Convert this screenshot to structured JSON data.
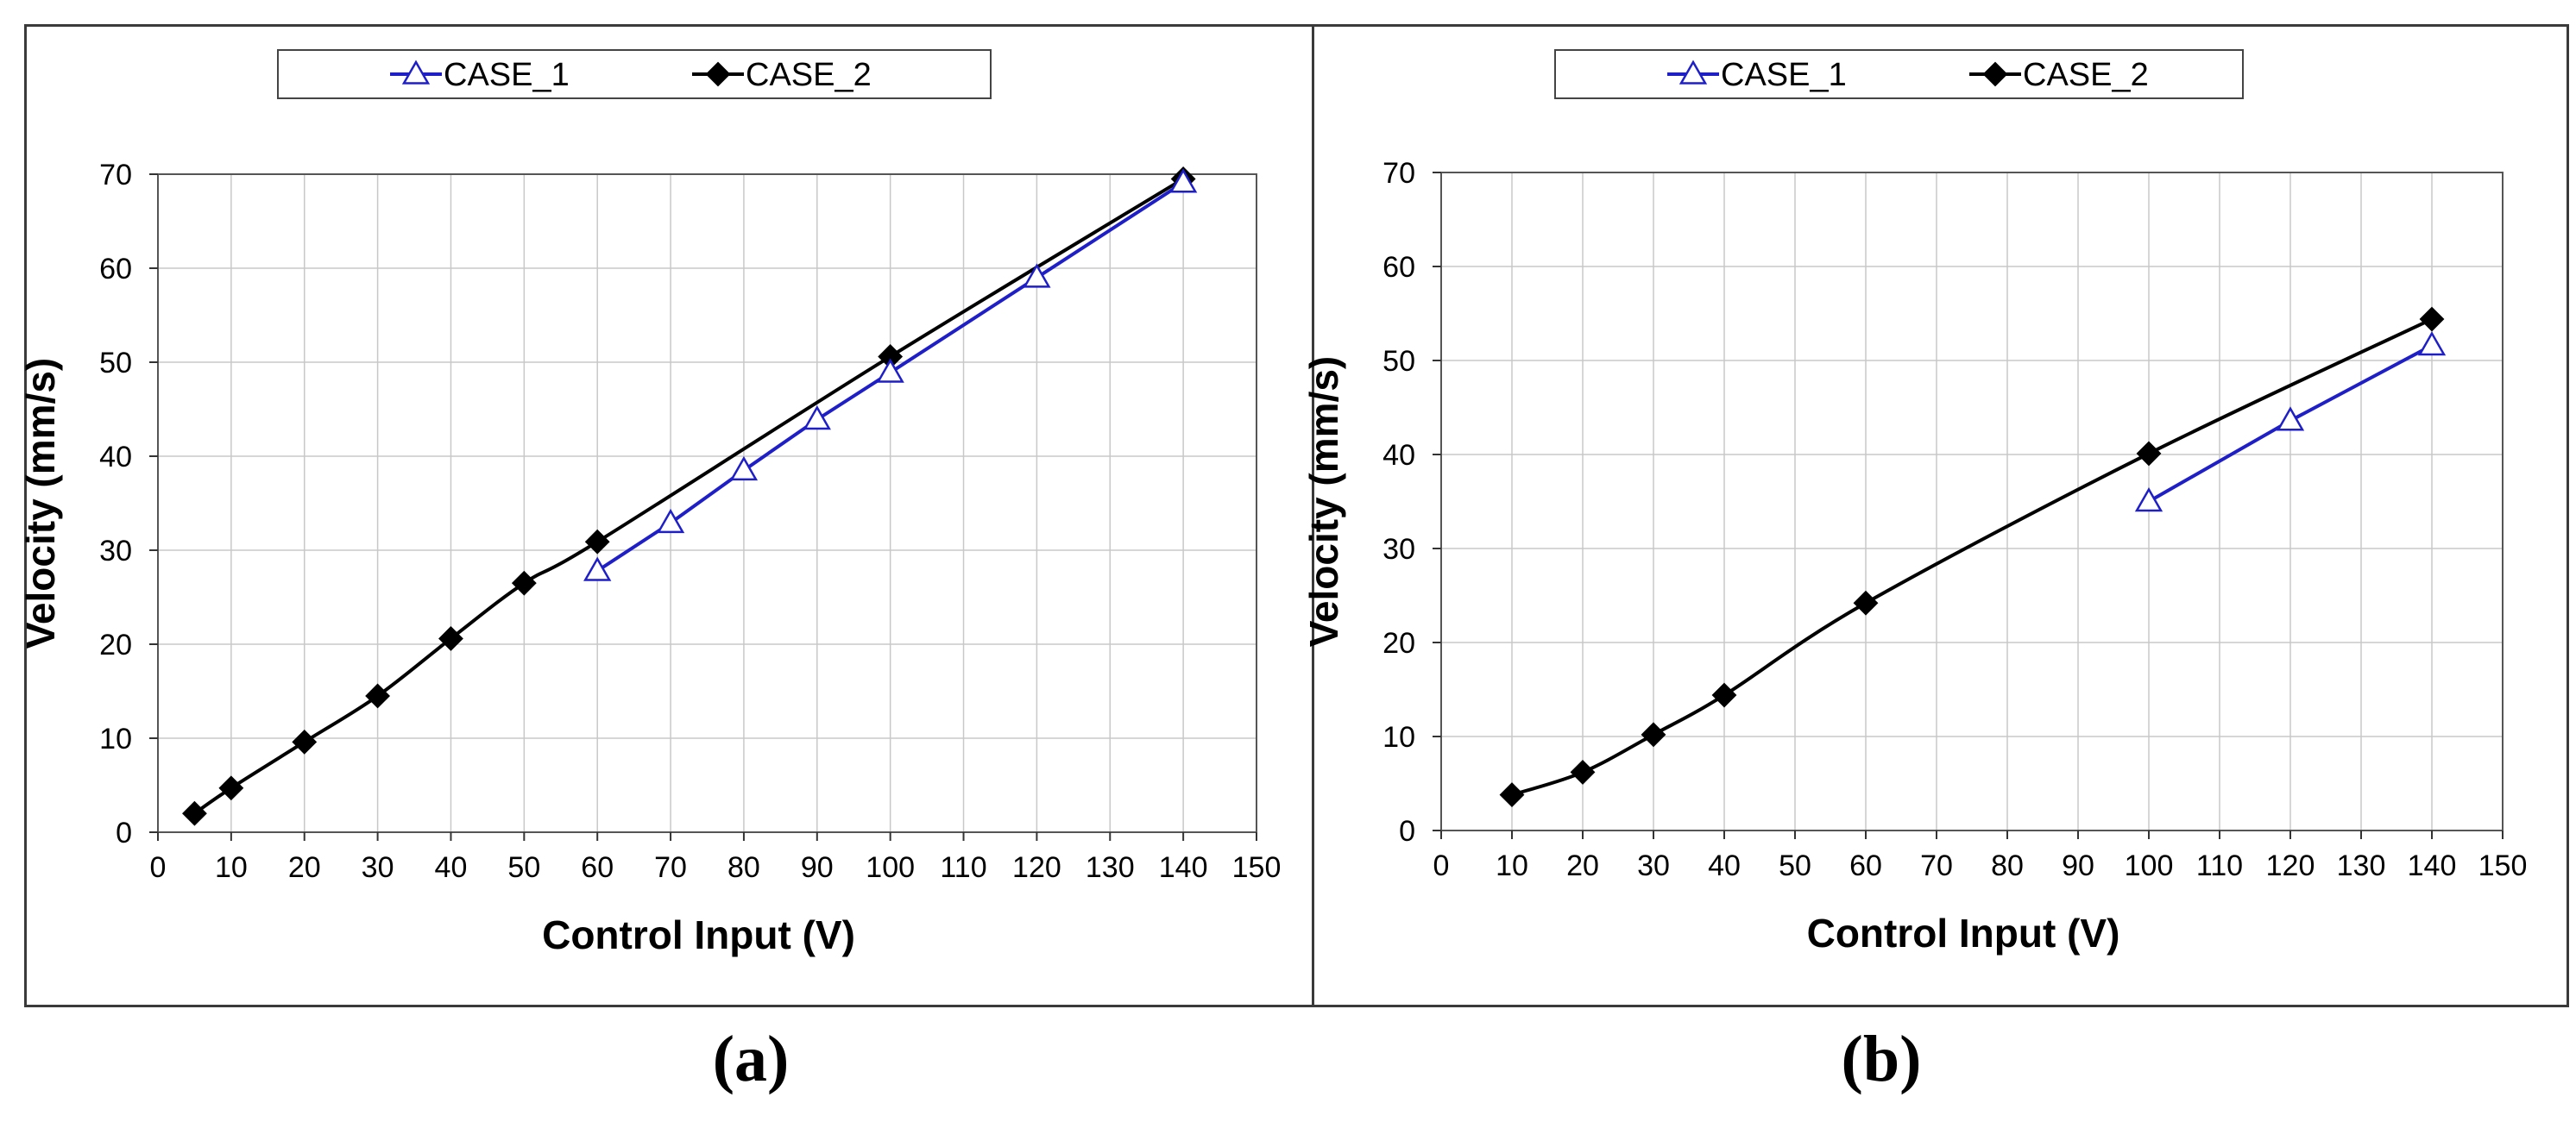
{
  "chart_data": [
    {
      "type": "line",
      "panel": "a",
      "xlabel": "Control Input (V)",
      "ylabel": "Velocity (mm/s)",
      "xlim": [
        0,
        150
      ],
      "ylim": [
        0,
        70
      ],
      "xticks": [
        "0",
        "10",
        "20",
        "30",
        "40",
        "50",
        "60",
        "70",
        "80",
        "90",
        "100",
        "110",
        "120",
        "130",
        "140",
        "150"
      ],
      "yticks": [
        "0",
        "10",
        "20",
        "30",
        "40",
        "50",
        "60",
        "70"
      ],
      "grid": true,
      "legend_position": "top-center",
      "series": [
        {
          "name": "CASE_1",
          "marker": "triangle-open",
          "color": "#1f1fc8",
          "x": [
            60,
            70,
            80,
            90,
            100,
            120,
            140
          ],
          "y": [
            27.8,
            32.9,
            38.5,
            43.9,
            48.9,
            59.0,
            69.1
          ]
        },
        {
          "name": "CASE_2",
          "marker": "diamond-filled",
          "color": "#000000",
          "x": [
            5,
            10,
            20,
            30,
            40,
            50,
            60,
            100,
            140
          ],
          "y": [
            2.0,
            4.7,
            9.6,
            14.5,
            20.6,
            26.5,
            30.9,
            50.6,
            69.5
          ]
        }
      ]
    },
    {
      "type": "line",
      "panel": "b",
      "xlabel": "Control Input (V)",
      "ylabel": "Velocity (mm/s)",
      "xlim": [
        0,
        150
      ],
      "ylim": [
        0,
        70
      ],
      "xticks": [
        "0",
        "10",
        "20",
        "30",
        "40",
        "50",
        "60",
        "70",
        "80",
        "90",
        "100",
        "110",
        "120",
        "130",
        "140",
        "150"
      ],
      "yticks": [
        "0",
        "10",
        "20",
        "30",
        "40",
        "50",
        "60",
        "70"
      ],
      "grid": true,
      "legend_position": "top-center",
      "series": [
        {
          "name": "CASE_1",
          "marker": "triangle-open",
          "color": "#1f1fc8",
          "x": [
            100,
            120,
            140
          ],
          "y": [
            35.0,
            43.6,
            51.6
          ]
        },
        {
          "name": "CASE_2",
          "marker": "diamond-filled",
          "color": "#000000",
          "x": [
            10,
            20,
            30,
            40,
            60,
            100,
            140
          ],
          "y": [
            3.8,
            6.2,
            10.2,
            14.4,
            24.2,
            40.1,
            54.4
          ]
        }
      ]
    }
  ],
  "captions": {
    "a": "(a)",
    "b": "(b)"
  }
}
